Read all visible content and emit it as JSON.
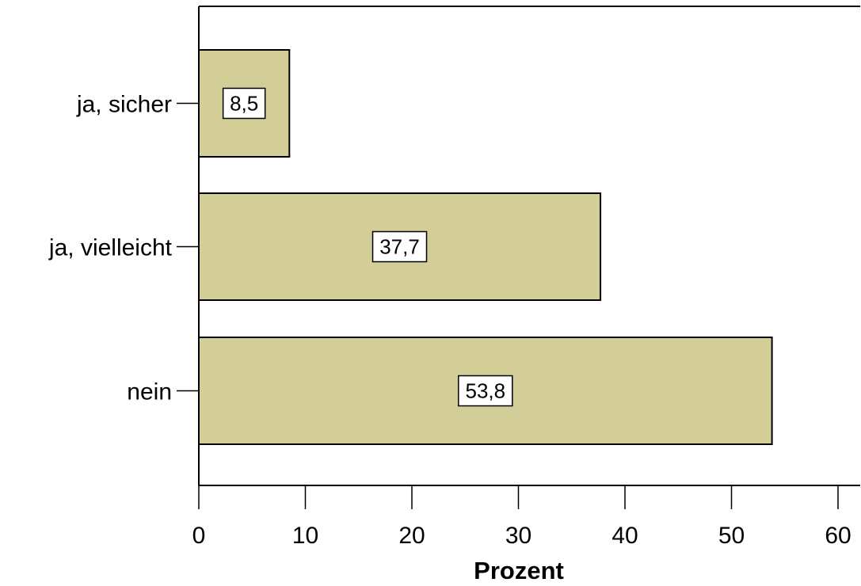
{
  "chart_data": {
    "type": "bar",
    "orientation": "horizontal",
    "categories": [
      "ja, sicher",
      "ja, vielleicht",
      "nein"
    ],
    "values": [
      8.5,
      37.7,
      53.8
    ],
    "value_labels": [
      "8,5",
      "37,7",
      "53,8"
    ],
    "xlabel": "Prozent",
    "ylabel": "",
    "xlim": [
      0,
      62
    ],
    "xticks": [
      0,
      10,
      20,
      30,
      40,
      50,
      60
    ],
    "xtick_labels": [
      "0",
      "10",
      "20",
      "30",
      "40",
      "50",
      "60"
    ],
    "grid": false,
    "bar_color": "#d3cd98"
  }
}
